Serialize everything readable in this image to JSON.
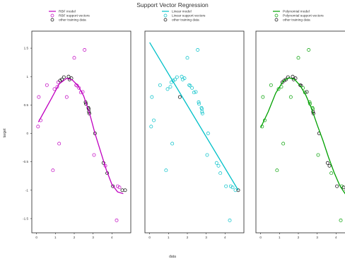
{
  "chart_data": {
    "type": "scatter",
    "title": "Support Vector Regression",
    "xlabel": "data",
    "ylabel": "target",
    "xlim": [
      -0.25,
      5.0
    ],
    "ylim": [
      -1.75,
      1.8
    ],
    "xticks": [
      0,
      1,
      2,
      3,
      4
    ],
    "yticks": [
      1.5,
      1.0,
      0.5,
      0.0,
      -0.5,
      -1.0,
      -1.5
    ],
    "training_data": {
      "x": [
        0.08,
        0.12,
        0.22,
        0.55,
        0.87,
        0.95,
        1.1,
        1.15,
        1.2,
        1.25,
        1.35,
        1.45,
        1.6,
        1.7,
        1.75,
        1.85,
        2.0,
        2.1,
        2.15,
        2.25,
        2.35,
        2.45,
        2.55,
        2.6,
        2.62,
        2.75,
        2.77,
        2.78,
        2.8,
        3.05,
        3.1,
        3.55,
        3.65,
        3.75,
        4.05,
        4.25,
        4.3,
        4.4,
        4.55,
        4.7
      ],
      "y": [
        0.12,
        0.64,
        0.23,
        0.85,
        -0.65,
        0.78,
        0.82,
        0.9,
        -0.18,
        0.93,
        0.95,
        0.99,
        0.64,
        1.0,
        0.95,
        0.97,
        1.33,
        0.85,
        0.84,
        0.8,
        0.72,
        0.73,
        1.47,
        0.55,
        0.52,
        0.45,
        0.43,
        0.38,
        0.35,
        -0.38,
        0.0,
        -0.52,
        -0.57,
        -0.7,
        -0.93,
        -1.53,
        -0.93,
        -0.95,
        -1.0,
        -1.0
      ]
    },
    "panels": [
      {
        "model_label": "RBF model",
        "sv_label": "RBF support vectors",
        "other_label": "other training data",
        "color": "#c000c0",
        "support_idx": [
          0,
          1,
          2,
          3,
          4,
          5,
          6,
          7,
          8,
          12,
          16,
          17,
          18,
          19,
          20,
          21,
          22,
          29,
          32,
          35,
          36,
          37
        ],
        "model_x": [
          0.1,
          0.4,
          0.8,
          1.2,
          1.6,
          1.9,
          2.2,
          2.5,
          2.8,
          3.1,
          3.4,
          3.7,
          4.0,
          4.3,
          4.6
        ],
        "model_y": [
          0.2,
          0.38,
          0.62,
          0.87,
          0.97,
          0.94,
          0.84,
          0.66,
          0.37,
          0.0,
          -0.32,
          -0.64,
          -0.9,
          -1.03,
          -1.06
        ]
      },
      {
        "model_label": "Linear model",
        "sv_label": "Linear support vectors",
        "other_label": "other training data",
        "color": "#00c0c8",
        "support_idx": [
          0,
          1,
          2,
          3,
          4,
          5,
          6,
          7,
          8,
          9,
          10,
          11,
          13,
          14,
          15,
          16,
          17,
          18,
          19,
          20,
          21,
          22,
          23,
          24,
          25,
          26,
          27,
          28,
          29,
          30,
          31,
          32,
          33,
          34,
          35,
          36,
          37,
          38
        ],
        "model_x": [
          0.0,
          4.7
        ],
        "model_y": [
          1.6,
          -1.0
        ]
      },
      {
        "model_label": "Polynomial model",
        "sv_label": "Polynomial support vectors",
        "other_label": "other training data",
        "color": "#00a000",
        "support_idx": [
          0,
          1,
          2,
          3,
          4,
          5,
          6,
          8,
          12,
          16,
          19,
          20,
          22,
          23,
          24,
          25,
          26,
          29,
          33,
          35,
          36
        ],
        "model_x": [
          0.0,
          0.4,
          0.8,
          1.2,
          1.5,
          1.8,
          2.1,
          2.4,
          2.7,
          3.0,
          3.3,
          3.6,
          3.9,
          4.2,
          4.5,
          4.8
        ],
        "model_y": [
          0.1,
          0.38,
          0.71,
          0.92,
          0.98,
          0.95,
          0.84,
          0.67,
          0.44,
          0.15,
          -0.12,
          -0.42,
          -0.69,
          -0.92,
          -1.07,
          -1.2
        ]
      }
    ]
  }
}
